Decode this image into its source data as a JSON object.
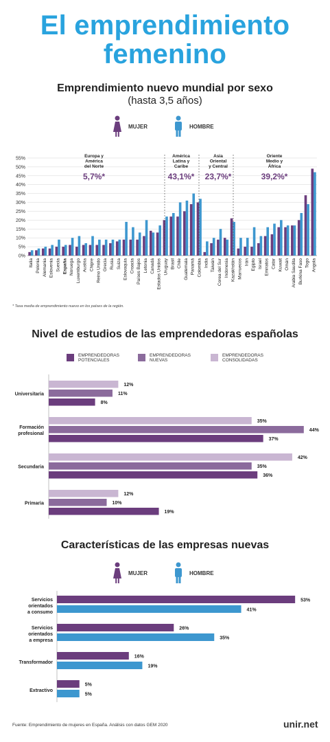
{
  "title": {
    "line1": "El emprendimiento",
    "line2": "femenino"
  },
  "colors": {
    "mujer": "#6b3d7d",
    "hombre": "#3d97cf",
    "potenciales": "#6b3d7d",
    "nuevas": "#8b6b9c",
    "consolidadas": "#c9b6d2",
    "title": "#29a3de"
  },
  "legend": {
    "mujer": "MUJER",
    "hombre": "HOMBRE"
  },
  "section1": {
    "title": "Emprendimiento nuevo mundial por sexo",
    "subtitle": "(hasta 3,5 años)",
    "note": "* Tasa media de emprendimiento nuevo en los países de la región."
  },
  "section2": {
    "title": "Nivel de estudios de las emprendedoras españolas"
  },
  "section3": {
    "title": "Características de las empresas nuevas"
  },
  "footer": {
    "source": "Fuente: Emprendimiento de mujeres en España. Análisis con datos GEM 2020",
    "brand": "unir.net"
  },
  "chart_data": [
    {
      "type": "bar",
      "title": "Emprendimiento nuevo mundial por sexo",
      "subtitle": "(hasta 3,5 años)",
      "ylim": [
        0,
        55
      ],
      "yticks": [
        "0%",
        "5%",
        "10%",
        "15%",
        "20%",
        "25%",
        "30%",
        "35%",
        "40%",
        "45%",
        "50%",
        "55%"
      ],
      "grid": true,
      "highlight_category": "España",
      "categories": [
        "Italia",
        "Polonia",
        "Alemania",
        "Eslovenia",
        "Suecia",
        "España",
        "Noruega",
        "Luxemburgo",
        "Austria",
        "Chipre",
        "Reino Unido",
        "Grecia",
        "Rusia",
        "Suiza",
        "Eslovaquia",
        "Croacia",
        "Países Bajos",
        "Letonia",
        "Canadá",
        "Estados Unidos",
        "Uruguay",
        "Brasil",
        "Chile",
        "Guatemala",
        "Panamá",
        "Colombia",
        "India",
        "Taiwán",
        "Corea del Sur",
        "Indonesia",
        "Kazakhstán",
        "Marruecos",
        "Irán",
        "Egipto",
        "Israel",
        "Emiratos",
        "Catar",
        "Kuwait",
        "Omán",
        "Arabia Saudita",
        "Burkina Faso",
        "Togo",
        "Angola"
      ],
      "series": [
        {
          "name": "MUJER",
          "values": [
            2,
            3,
            4,
            4,
            5,
            5,
            6,
            5,
            6,
            6,
            6,
            6,
            7,
            8,
            9,
            9,
            9,
            11,
            14,
            13,
            20,
            22,
            22,
            25,
            29,
            30,
            2,
            7,
            9,
            10,
            21,
            4,
            5,
            5,
            7,
            11,
            12,
            16,
            16,
            17,
            20,
            34,
            49
          ]
        },
        {
          "name": "HOMBRE",
          "values": [
            3,
            4,
            5,
            6,
            9,
            6,
            10,
            11,
            7,
            11,
            9,
            9,
            9,
            9,
            19,
            16,
            13,
            20,
            13,
            17,
            22,
            24,
            30,
            31,
            35,
            32,
            8,
            10,
            15,
            9,
            19,
            10,
            10,
            16,
            11,
            16,
            18,
            20,
            17,
            17,
            24,
            29,
            47
          ]
        }
      ],
      "regions": [
        {
          "label": "Europa y América del Norte",
          "value": "5,7%*"
        },
        {
          "label": "América Latina y Caribe",
          "value": "43,1%*"
        },
        {
          "label": "Asia Oriental y Central",
          "value": "23,7%*"
        },
        {
          "label": "Oriente Medio y África",
          "value": "39,2%*"
        }
      ]
    },
    {
      "type": "bar",
      "orientation": "horizontal",
      "title": "Nivel de estudios de las emprendedoras españolas",
      "categories": [
        "Universitaria",
        "Formación profesional",
        "Secundaria",
        "Primaria"
      ],
      "series": [
        {
          "name": "EMPRENDEDORAS CONSOLIDADAS",
          "values": [
            12,
            35,
            42,
            12
          ]
        },
        {
          "name": "EMPRENDEDORAS NUEVAS",
          "values": [
            11,
            44,
            35,
            10
          ]
        },
        {
          "name": "EMPRENDEDORAS POTENCIALES",
          "values": [
            8,
            37,
            36,
            19
          ]
        }
      ],
      "value_labels": [
        [
          "12%",
          "11%",
          "8%"
        ],
        [
          "35%",
          "44%",
          "37%"
        ],
        [
          "42%",
          "35%",
          "36%"
        ],
        [
          "12%",
          "10%",
          "19%"
        ]
      ]
    },
    {
      "type": "bar",
      "orientation": "horizontal",
      "title": "Características de las empresas nuevas",
      "categories": [
        "Servicios orientados a consumo",
        "Servicios orientados a empresa",
        "Transformador",
        "Extractivo"
      ],
      "series": [
        {
          "name": "MUJER",
          "values": [
            53,
            26,
            16,
            5
          ]
        },
        {
          "name": "HOMBRE",
          "values": [
            41,
            35,
            19,
            5
          ]
        }
      ],
      "value_labels": [
        [
          "53%",
          "41%"
        ],
        [
          "26%",
          "35%"
        ],
        [
          "16%",
          "19%"
        ],
        [
          "5%",
          "5%"
        ]
      ]
    }
  ]
}
